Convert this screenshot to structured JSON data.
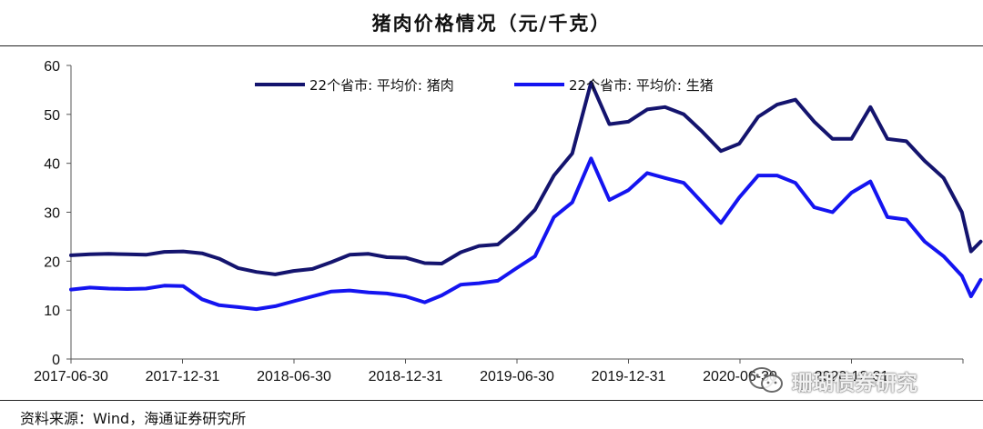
{
  "header": {
    "title": "猪肉价格情况（元/千克）"
  },
  "footer": {
    "source": "资料来源：Wind，海通证券研究所"
  },
  "watermark": {
    "text": "珊瑚债券研究",
    "icon": "wechat-icon"
  },
  "colors": {
    "pork": "#14146E",
    "hog": "#1414F0"
  },
  "chart_data": {
    "type": "line",
    "title": "猪肉价格情况（元/千克）",
    "ylim": [
      0,
      60
    ],
    "yticks": [
      "0",
      "10",
      "20",
      "30",
      "40",
      "50",
      "60"
    ],
    "xticks": [
      "2017-06-30",
      "2017-12-31",
      "2018-06-30",
      "2018-12-31",
      "2019-06-30",
      "2019-12-31",
      "2020-06-30",
      "2020-12-31"
    ],
    "legend_position": "top-center",
    "grid": false,
    "series": [
      {
        "name": "22个省市: 平均价: 猪肉",
        "color": "#14146E",
        "points": [
          [
            "2017-06-30",
            21.2
          ],
          [
            "2017-07-31",
            21.4
          ],
          [
            "2017-08-31",
            21.5
          ],
          [
            "2017-09-30",
            21.4
          ],
          [
            "2017-10-31",
            21.3
          ],
          [
            "2017-11-30",
            21.9
          ],
          [
            "2017-12-31",
            22.0
          ],
          [
            "2018-01-31",
            21.6
          ],
          [
            "2018-02-28",
            20.5
          ],
          [
            "2018-03-31",
            18.6
          ],
          [
            "2018-04-30",
            17.8
          ],
          [
            "2018-05-31",
            17.3
          ],
          [
            "2018-06-30",
            18.0
          ],
          [
            "2018-07-31",
            18.4
          ],
          [
            "2018-08-31",
            19.8
          ],
          [
            "2018-09-30",
            21.3
          ],
          [
            "2018-10-31",
            21.5
          ],
          [
            "2018-11-30",
            20.8
          ],
          [
            "2018-12-31",
            20.7
          ],
          [
            "2019-01-31",
            19.6
          ],
          [
            "2019-02-28",
            19.5
          ],
          [
            "2019-03-31",
            21.8
          ],
          [
            "2019-04-30",
            23.1
          ],
          [
            "2019-05-31",
            23.4
          ],
          [
            "2019-06-30",
            26.5
          ],
          [
            "2019-07-31",
            30.5
          ],
          [
            "2019-08-31",
            37.5
          ],
          [
            "2019-09-30",
            42.0
          ],
          [
            "2019-10-31",
            56.5
          ],
          [
            "2019-11-30",
            48.0
          ],
          [
            "2019-12-31",
            48.5
          ],
          [
            "2020-01-31",
            51.0
          ],
          [
            "2020-02-29",
            51.5
          ],
          [
            "2020-03-31",
            50.0
          ],
          [
            "2020-04-30",
            46.5
          ],
          [
            "2020-05-31",
            42.5
          ],
          [
            "2020-06-30",
            44.0
          ],
          [
            "2020-07-31",
            49.5
          ],
          [
            "2020-08-31",
            52.0
          ],
          [
            "2020-09-30",
            53.0
          ],
          [
            "2020-10-31",
            48.5
          ],
          [
            "2020-11-30",
            45.0
          ],
          [
            "2020-12-31",
            45.0
          ],
          [
            "2021-01-31",
            51.5
          ],
          [
            "2021-02-28",
            45.0
          ],
          [
            "2021-03-31",
            44.5
          ],
          [
            "2021-04-30",
            40.5
          ],
          [
            "2021-05-31",
            37.0
          ],
          [
            "2021-06-30",
            30.0
          ],
          [
            "2021-07-15",
            22.0
          ],
          [
            "2021-07-31",
            24.0
          ]
        ]
      },
      {
        "name": "22个省市: 平均价: 生猪",
        "color": "#1414F0",
        "points": [
          [
            "2017-06-30",
            14.2
          ],
          [
            "2017-07-31",
            14.6
          ],
          [
            "2017-08-31",
            14.4
          ],
          [
            "2017-09-30",
            14.3
          ],
          [
            "2017-10-31",
            14.4
          ],
          [
            "2017-11-30",
            15.0
          ],
          [
            "2017-12-31",
            14.9
          ],
          [
            "2018-01-31",
            12.2
          ],
          [
            "2018-02-28",
            11.0
          ],
          [
            "2018-03-31",
            10.6
          ],
          [
            "2018-04-30",
            10.2
          ],
          [
            "2018-05-31",
            10.8
          ],
          [
            "2018-06-30",
            11.8
          ],
          [
            "2018-07-31",
            12.8
          ],
          [
            "2018-08-31",
            13.8
          ],
          [
            "2018-09-30",
            14.0
          ],
          [
            "2018-10-31",
            13.6
          ],
          [
            "2018-11-30",
            13.4
          ],
          [
            "2018-12-31",
            12.8
          ],
          [
            "2019-01-31",
            11.6
          ],
          [
            "2019-02-28",
            13.0
          ],
          [
            "2019-03-31",
            15.2
          ],
          [
            "2019-04-30",
            15.5
          ],
          [
            "2019-05-31",
            16.0
          ],
          [
            "2019-06-30",
            18.5
          ],
          [
            "2019-07-31",
            21.0
          ],
          [
            "2019-08-31",
            29.0
          ],
          [
            "2019-09-30",
            32.0
          ],
          [
            "2019-10-31",
            41.0
          ],
          [
            "2019-11-30",
            32.5
          ],
          [
            "2019-12-31",
            34.5
          ],
          [
            "2020-01-31",
            38.0
          ],
          [
            "2020-02-29",
            37.0
          ],
          [
            "2020-03-31",
            36.0
          ],
          [
            "2020-04-30",
            32.0
          ],
          [
            "2020-05-31",
            27.8
          ],
          [
            "2020-06-30",
            33.0
          ],
          [
            "2020-07-31",
            37.5
          ],
          [
            "2020-08-31",
            37.5
          ],
          [
            "2020-09-30",
            36.0
          ],
          [
            "2020-10-31",
            31.0
          ],
          [
            "2020-11-30",
            30.0
          ],
          [
            "2020-12-31",
            34.0
          ],
          [
            "2021-01-31",
            36.3
          ],
          [
            "2021-02-28",
            29.0
          ],
          [
            "2021-03-31",
            28.5
          ],
          [
            "2021-04-30",
            24.0
          ],
          [
            "2021-05-31",
            21.0
          ],
          [
            "2021-06-30",
            17.0
          ],
          [
            "2021-07-15",
            12.8
          ],
          [
            "2021-07-31",
            16.2
          ]
        ]
      }
    ]
  }
}
